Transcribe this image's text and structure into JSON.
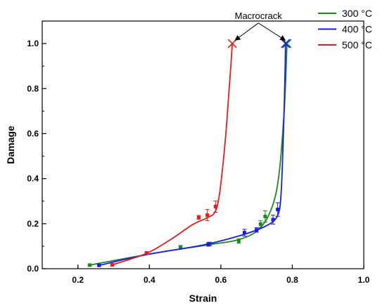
{
  "chart_data": {
    "type": "line",
    "title": "",
    "xlabel": "Strain",
    "ylabel": "Damage",
    "xlim": [
      0.1,
      1.0
    ],
    "ylim": [
      0.0,
      1.1
    ],
    "xticks": [
      0.2,
      0.4,
      0.6,
      0.8,
      1.0
    ],
    "xtick_labels": [
      "0.2",
      "0.4",
      "0.6",
      "0.8",
      "1.0"
    ],
    "yticks": [
      0.0,
      0.2,
      0.4,
      0.6,
      0.8,
      1.0
    ],
    "ytick_labels": [
      "0.0",
      "0.2",
      "0.4",
      "0.6",
      "0.8",
      "1.0"
    ],
    "grid": false,
    "legend_position": "top-right",
    "series": [
      {
        "name": "300 °C",
        "color": "#1a8a1a",
        "points": [
          {
            "x": 0.233,
            "y": 0.016,
            "err": 0.003
          },
          {
            "x": 0.487,
            "y": 0.095,
            "err": 0.008
          },
          {
            "x": 0.569,
            "y": 0.11,
            "err": 0.008
          },
          {
            "x": 0.65,
            "y": 0.123,
            "err": 0.01
          },
          {
            "x": 0.711,
            "y": 0.198,
            "err": 0.015
          },
          {
            "x": 0.724,
            "y": 0.232,
            "err": 0.025
          },
          {
            "x": 0.785,
            "y": 1.0,
            "err": 0.0
          }
        ],
        "curve": [
          [
            0.233,
            0.016
          ],
          [
            0.4,
            0.065
          ],
          [
            0.56,
            0.105
          ],
          [
            0.64,
            0.125
          ],
          [
            0.69,
            0.155
          ],
          [
            0.72,
            0.2
          ],
          [
            0.74,
            0.26
          ],
          [
            0.755,
            0.34
          ],
          [
            0.765,
            0.45
          ],
          [
            0.772,
            0.58
          ],
          [
            0.778,
            0.72
          ],
          [
            0.782,
            0.86
          ],
          [
            0.785,
            1.0
          ]
        ]
      },
      {
        "name": "400 °C",
        "color": "#1a1aee",
        "points": [
          {
            "x": 0.259,
            "y": 0.015,
            "err": 0.003
          },
          {
            "x": 0.565,
            "y": 0.108,
            "err": 0.008
          },
          {
            "x": 0.666,
            "y": 0.16,
            "err": 0.015
          },
          {
            "x": 0.7,
            "y": 0.172,
            "err": 0.01
          },
          {
            "x": 0.746,
            "y": 0.218,
            "err": 0.02
          },
          {
            "x": 0.759,
            "y": 0.263,
            "err": 0.03
          },
          {
            "x": 0.781,
            "y": 1.0,
            "err": 0.0
          }
        ],
        "curve": [
          [
            0.259,
            0.015
          ],
          [
            0.4,
            0.065
          ],
          [
            0.55,
            0.105
          ],
          [
            0.66,
            0.15
          ],
          [
            0.72,
            0.185
          ],
          [
            0.75,
            0.215
          ],
          [
            0.763,
            0.255
          ],
          [
            0.768,
            0.32
          ],
          [
            0.772,
            0.45
          ],
          [
            0.775,
            0.6
          ],
          [
            0.778,
            0.76
          ],
          [
            0.78,
            0.9
          ],
          [
            0.781,
            1.0
          ]
        ]
      },
      {
        "name": "500 °C",
        "color": "#ee1a1a",
        "points": [
          {
            "x": 0.296,
            "y": 0.017,
            "err": 0.003
          },
          {
            "x": 0.392,
            "y": 0.07,
            "err": 0.005
          },
          {
            "x": 0.538,
            "y": 0.228,
            "err": 0.008
          },
          {
            "x": 0.562,
            "y": 0.238,
            "err": 0.025
          },
          {
            "x": 0.585,
            "y": 0.276,
            "err": 0.025
          },
          {
            "x": 0.632,
            "y": 1.0,
            "err": 0.0
          }
        ],
        "curve": [
          [
            0.296,
            0.017
          ],
          [
            0.392,
            0.068
          ],
          [
            0.46,
            0.13
          ],
          [
            0.52,
            0.195
          ],
          [
            0.56,
            0.225
          ],
          [
            0.583,
            0.25
          ],
          [
            0.595,
            0.32
          ],
          [
            0.605,
            0.45
          ],
          [
            0.614,
            0.6
          ],
          [
            0.621,
            0.75
          ],
          [
            0.627,
            0.88
          ],
          [
            0.632,
            1.0
          ]
        ]
      }
    ],
    "annotations": [
      {
        "text": "Macrocrack",
        "x": 0.705,
        "y": 1.11,
        "arrows_to": [
          [
            0.64,
            1.015
          ],
          [
            0.78,
            1.015
          ]
        ]
      }
    ]
  }
}
